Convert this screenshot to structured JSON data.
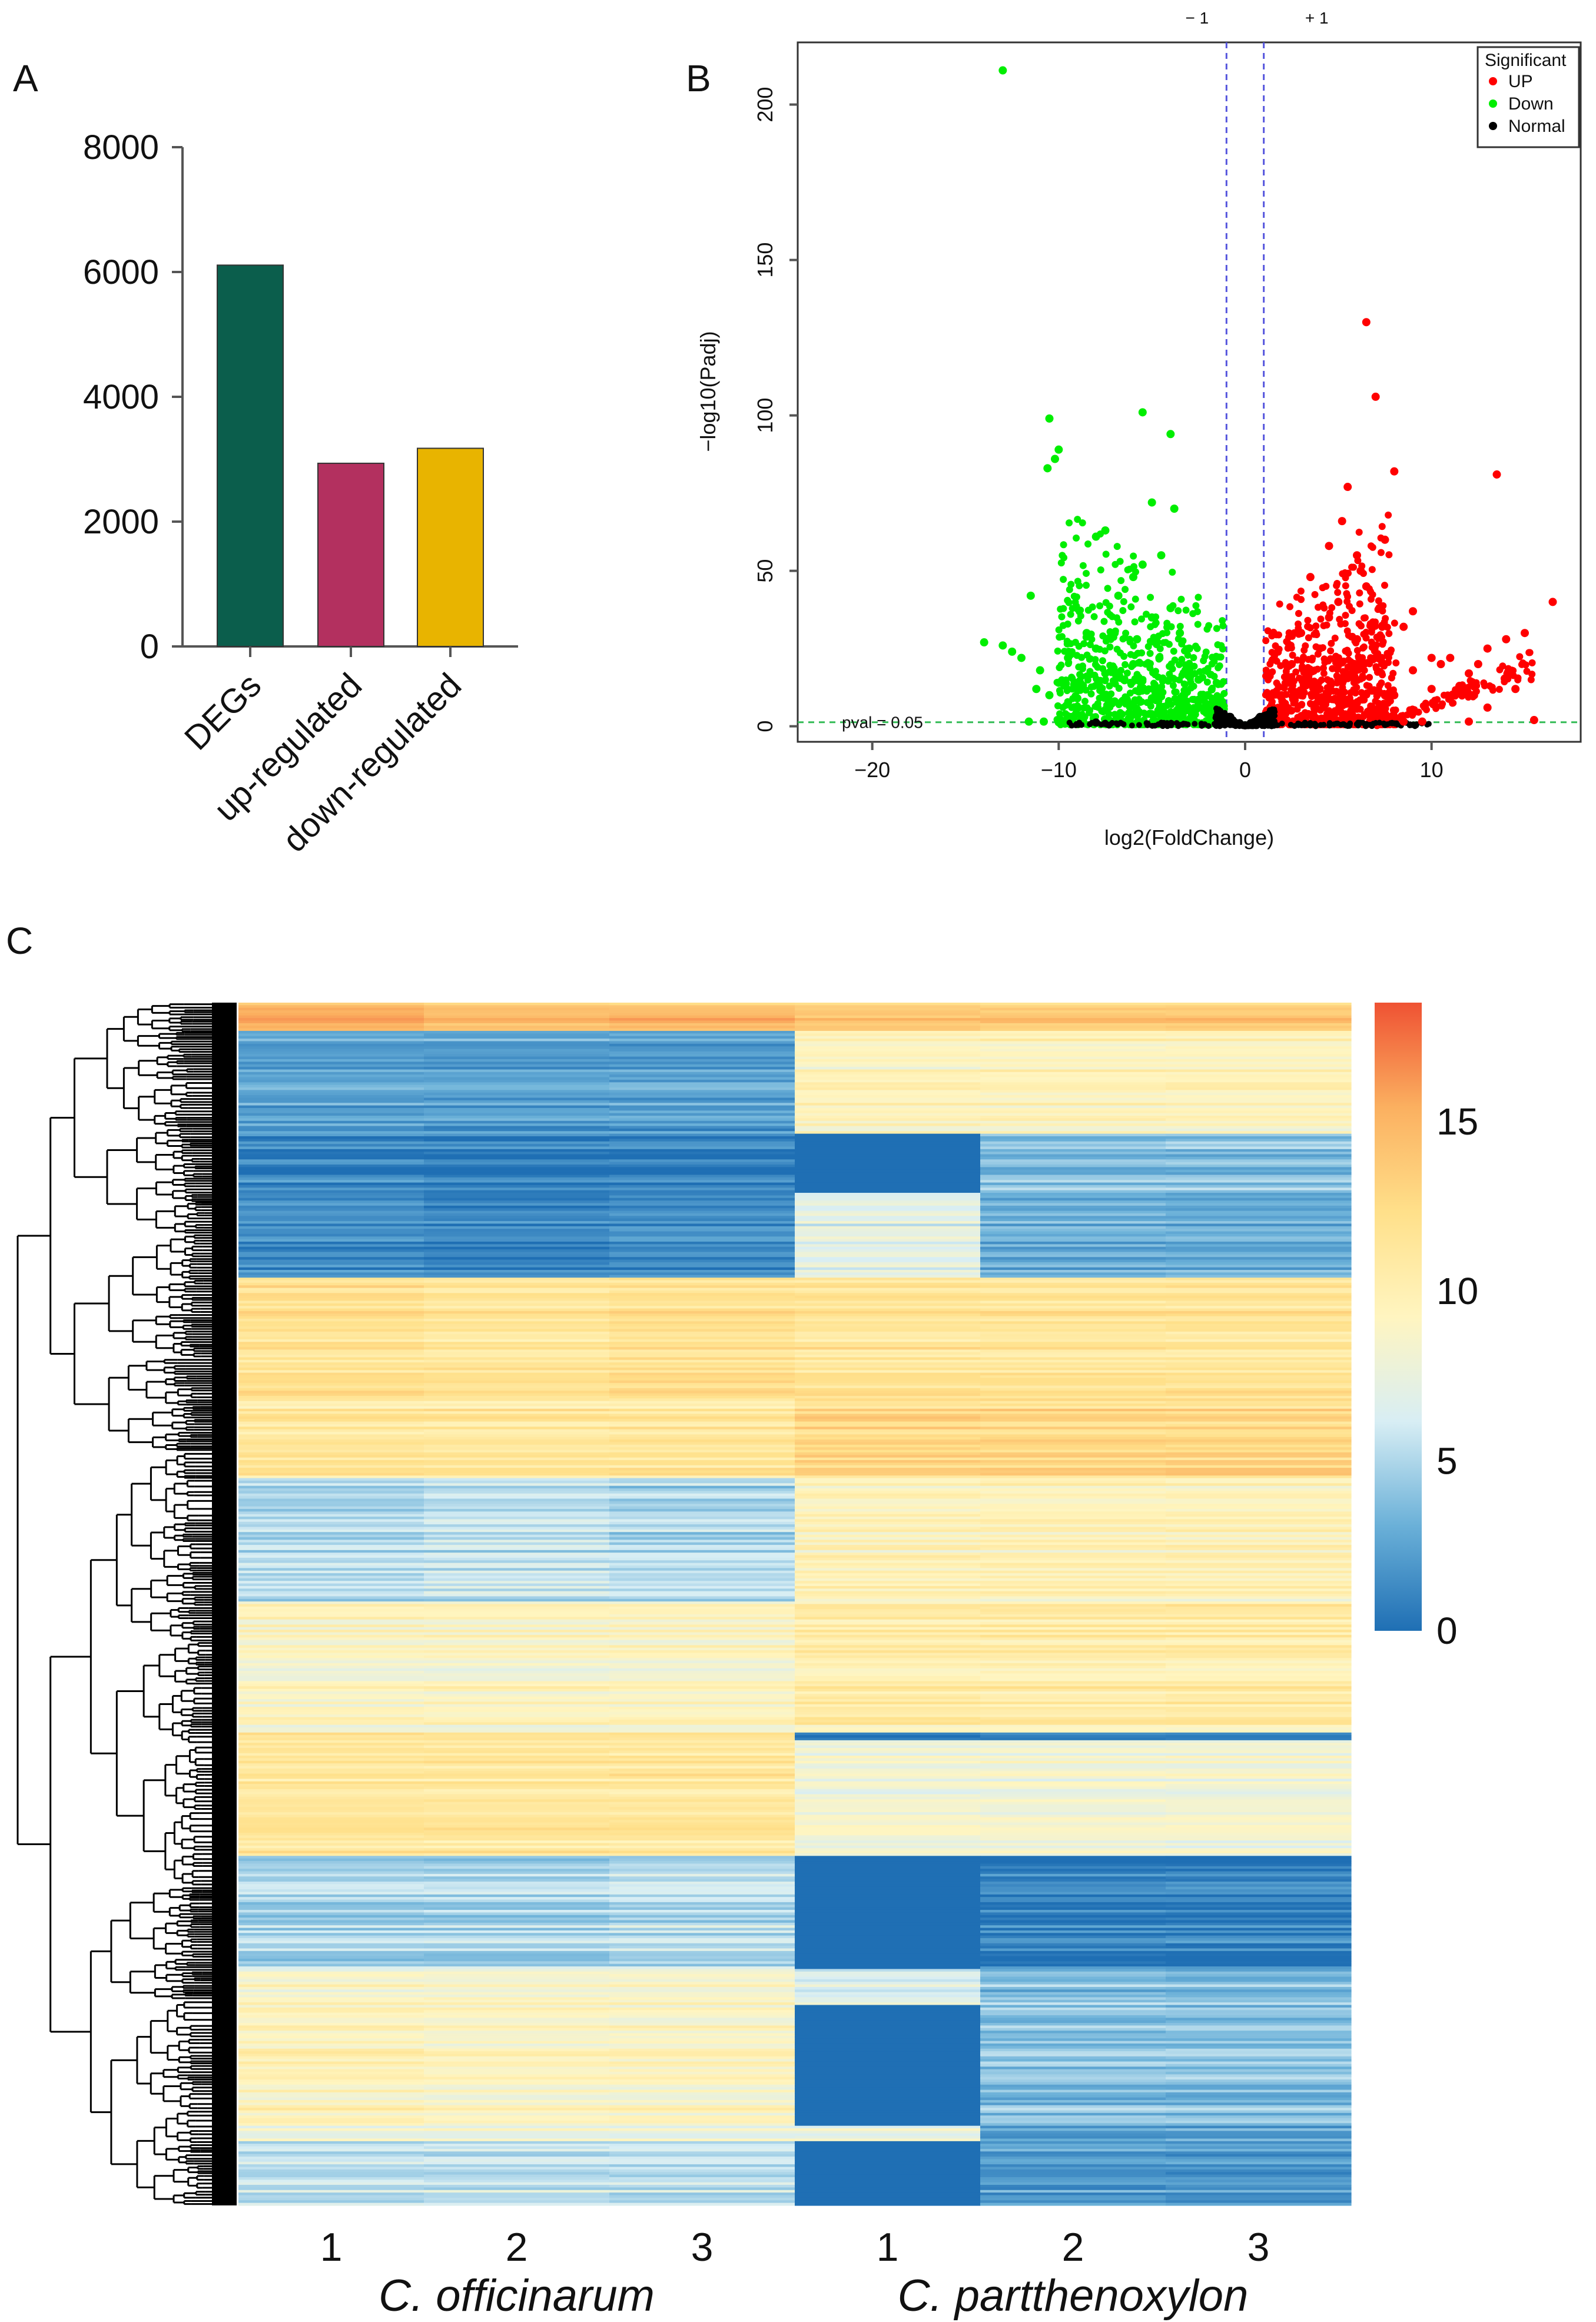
{
  "chart_data": [
    {
      "panel": "A",
      "type": "bar",
      "categories": [
        "DEGs",
        "up-regulated",
        "down-regulated"
      ],
      "values": [
        6110,
        2935,
        3175
      ],
      "colors": [
        "#0b5e4c",
        "#b3305f",
        "#e8b400"
      ],
      "yticks": [
        "0",
        "2000",
        "4000",
        "6000",
        "8000"
      ],
      "ylim": [
        0,
        8000
      ],
      "title": "",
      "xlabel": "",
      "ylabel": ""
    },
    {
      "panel": "B",
      "type": "scatter",
      "title": "",
      "xlabel": "log2(FoldChange)",
      "ylabel": "−log10(Padj)",
      "xlim": [
        -24,
        18
      ],
      "ylim": [
        -5,
        220
      ],
      "xticks": [
        "−20",
        "−10",
        "0",
        "10"
      ],
      "yticks": [
        "0",
        "50",
        "100",
        "150",
        "200"
      ],
      "fc_lines": {
        "left": -1,
        "right": 1,
        "left_label": "− 1",
        "right_label": "+ 1"
      },
      "pval_line": {
        "value": 0.05,
        "label": "pval = 0.05"
      },
      "legend": {
        "title": "Significant",
        "items": [
          {
            "name": "UP",
            "color": "#ff0000"
          },
          {
            "name": "Down",
            "color": "#00ee00"
          },
          {
            "name": "Normal",
            "color": "#000000"
          }
        ]
      },
      "series": [
        {
          "name": "UP",
          "color": "#ff0000",
          "points": [
            [
              6.5,
              130
            ],
            [
              7,
              106
            ],
            [
              13.5,
              81
            ],
            [
              8,
              82
            ],
            [
              5.5,
              77
            ],
            [
              16.5,
              40
            ],
            [
              14,
              28
            ],
            [
              13,
              25
            ],
            [
              12.5,
              20
            ],
            [
              15,
              30
            ],
            [
              11,
              22
            ],
            [
              9,
              37
            ],
            [
              7.5,
              60
            ],
            [
              6,
              55
            ],
            [
              4.5,
              58
            ],
            [
              3.5,
              48
            ],
            [
              5,
              40
            ],
            [
              8.5,
              32
            ],
            [
              10,
              22
            ],
            [
              12,
              17
            ],
            [
              3,
              30
            ],
            [
              4,
              25
            ],
            [
              2.5,
              20
            ],
            [
              6,
              28
            ],
            [
              7,
              22
            ],
            [
              9,
              18
            ],
            [
              11.5,
              13
            ],
            [
              14.5,
              12
            ],
            [
              5,
              15
            ],
            [
              3,
              10
            ],
            [
              2,
              8
            ],
            [
              4,
              12
            ],
            [
              8,
              10
            ],
            [
              10,
              12
            ],
            [
              6.5,
              45
            ],
            [
              5.2,
              66
            ],
            [
              6.2,
              50
            ],
            [
              13,
              6
            ],
            [
              15.5,
              2
            ],
            [
              12,
              1.5
            ],
            [
              9.5,
              1.5
            ],
            [
              8.5,
              1.5
            ],
            [
              4.5,
              35
            ],
            [
              7.2,
              38
            ],
            [
              10.5,
              20
            ]
          ]
        },
        {
          "name": "Down",
          "color": "#00ee00",
          "points": [
            [
              -13,
              211
            ],
            [
              -10.5,
              99
            ],
            [
              -5.5,
              101
            ],
            [
              -4,
              94
            ],
            [
              -10,
              89
            ],
            [
              -10.2,
              86
            ],
            [
              -10.6,
              83
            ],
            [
              -5,
              72
            ],
            [
              -3.8,
              70
            ],
            [
              -7.5,
              63
            ],
            [
              -8,
              61
            ],
            [
              -4.5,
              55
            ],
            [
              -5.5,
              52
            ],
            [
              -6,
              48
            ],
            [
              -11.5,
              42
            ],
            [
              -14,
              27
            ],
            [
              -12.5,
              24
            ],
            [
              -13,
              26
            ],
            [
              -12,
              22
            ],
            [
              -11,
              18
            ],
            [
              -10,
              14
            ],
            [
              -9,
              12
            ],
            [
              -8,
              25
            ],
            [
              -7,
              30
            ],
            [
              -6,
              20
            ],
            [
              -5,
              35
            ],
            [
              -4,
              38
            ],
            [
              -3,
              25
            ],
            [
              -3.5,
              30
            ],
            [
              -2.5,
              15
            ],
            [
              -2,
              10
            ],
            [
              -6.5,
              15
            ],
            [
              -7.5,
              17
            ],
            [
              -9.5,
              22
            ],
            [
              -8.5,
              30
            ],
            [
              -6.8,
              42
            ],
            [
              -5.8,
              28
            ],
            [
              -4.6,
              22
            ],
            [
              -3.2,
              18
            ],
            [
              -10.5,
              10
            ],
            [
              -11.2,
              12
            ],
            [
              -9,
              9
            ],
            [
              -7,
              8
            ],
            [
              -5,
              9
            ],
            [
              -10.8,
              1.5
            ],
            [
              -11.6,
              1.5
            ]
          ]
        },
        {
          "name": "Normal",
          "color": "#000000",
          "points": [
            [
              -8,
              1.2
            ],
            [
              -0.5,
              0.5
            ],
            [
              0,
              0.3
            ],
            [
              0.5,
              0.5
            ],
            [
              -1,
              1.5
            ],
            [
              1,
              1.5
            ],
            [
              -0.8,
              3
            ],
            [
              0.8,
              3
            ],
            [
              -0.3,
              1
            ],
            [
              0.3,
              1
            ]
          ]
        }
      ]
    },
    {
      "panel": "C",
      "type": "heatmap",
      "columns": [
        "1",
        "2",
        "3",
        "1",
        "2",
        "3"
      ],
      "groups": [
        {
          "name": "C. officinarum",
          "columns": [
            0,
            1,
            2
          ]
        },
        {
          "name": "C. partthenoxylon",
          "columns": [
            3,
            4,
            5
          ]
        }
      ],
      "colorbar": {
        "min": 0,
        "max": 18.5,
        "ticks": [
          "0",
          "5",
          "10",
          "15"
        ],
        "tick_values": [
          0,
          5,
          10,
          15
        ],
        "colors": [
          "#1f6fb4",
          "#6ab0d8",
          "#d8eef4",
          "#fff5c0",
          "#ffe08a",
          "#fbb060",
          "#ef5233"
        ]
      },
      "blocks": [
        {
          "rows": 11,
          "values": [
            15,
            14.5,
            14.5,
            13.5,
            13.5,
            13.5
          ]
        },
        {
          "rows": 40,
          "values": [
            2.5,
            2.5,
            2.5,
            9.5,
            9.5,
            9.5
          ]
        },
        {
          "rows": 23,
          "values": [
            1,
            0.8,
            1,
            0,
            4,
            4
          ]
        },
        {
          "rows": 33,
          "values": [
            1.5,
            1,
            1.5,
            7,
            3,
            3
          ]
        },
        {
          "rows": 47,
          "values": [
            12,
            11.5,
            12,
            11.5,
            11.5,
            11.5
          ]
        },
        {
          "rows": 31,
          "values": [
            11,
            11,
            11,
            12.5,
            12.5,
            12.5
          ]
        },
        {
          "rows": 48,
          "values": [
            5,
            5.5,
            5,
            9.5,
            9.5,
            9.5
          ]
        },
        {
          "rows": 51,
          "values": [
            9,
            9,
            9,
            10.5,
            10.5,
            10.5
          ]
        },
        {
          "rows": 3,
          "values": [
            12,
            12,
            12,
            0.5,
            1,
            1
          ]
        },
        {
          "rows": 45,
          "values": [
            11,
            11,
            11,
            8,
            8,
            8
          ]
        },
        {
          "rows": 44,
          "values": [
            5,
            5,
            5.5,
            0,
            1,
            1
          ]
        },
        {
          "rows": 14,
          "values": [
            9,
            9,
            9,
            7,
            4,
            4
          ]
        },
        {
          "rows": 47,
          "values": [
            9.5,
            9,
            9,
            0,
            4,
            4
          ]
        },
        {
          "rows": 6,
          "values": [
            8,
            8,
            8,
            8,
            2.5,
            2.5
          ]
        },
        {
          "rows": 25,
          "values": [
            6,
            6,
            6,
            0,
            2.5,
            2.5
          ]
        }
      ]
    }
  ],
  "panels": {
    "a": "A",
    "b": "B",
    "c": "C"
  }
}
